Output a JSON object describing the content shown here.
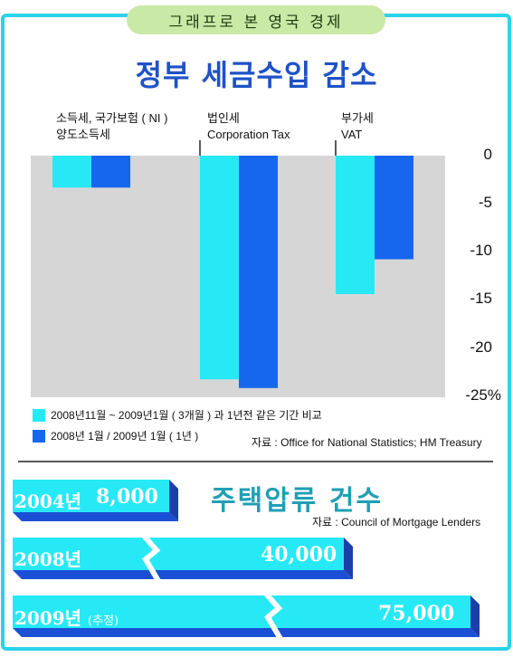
{
  "header": {
    "pill": "그래프로 본 영국 경제",
    "title": "정부 세금수입 감소"
  },
  "chart_data": {
    "type": "bar",
    "title": "정부 세금수입 감소",
    "categories": [
      {
        "line1": "소득세, 국가보험 ( NI )",
        "line2": "양도소득세"
      },
      {
        "line1": "법인세",
        "line2": "Corporation Tax"
      },
      {
        "line1": "부가세",
        "line2": "VAT"
      }
    ],
    "series": [
      {
        "name": "2008년11월 ~ 2009년1월 ( 3개월 ) 과 1년전 같은 기간 비교",
        "color": "#27e9f5",
        "values": [
          -3.3,
          -23.1,
          -14.3
        ]
      },
      {
        "name": "2008년 1월 / 2009년 1월 ( 1년 )",
        "color": "#1667ee",
        "values": [
          -3.3,
          -24.0,
          -10.7
        ]
      }
    ],
    "yticks": [
      "0",
      "-5",
      "-10",
      "-15",
      "-20",
      "-25%"
    ],
    "ylim": [
      -25,
      0
    ],
    "grid": false,
    "legend": "bottom-left",
    "source": "자료 : Office for National Statistics; HM Treasury"
  },
  "housing": {
    "title": "주택압류 건수",
    "source": "자료 : Council of Mortgage Lenders",
    "rows": [
      {
        "year": "2004년",
        "value": "8,000",
        "note": ""
      },
      {
        "year": "2008년",
        "value": "40,000",
        "note": ""
      },
      {
        "year": "2009년",
        "value": "75,000",
        "note": "(추정)"
      }
    ]
  },
  "colors": {
    "border": "#2bd2ea",
    "plot_bg": "#d6d6d6",
    "cyan": "#27e9f5",
    "blue": "#1667ee",
    "banner_side": "#1b4fd6"
  }
}
